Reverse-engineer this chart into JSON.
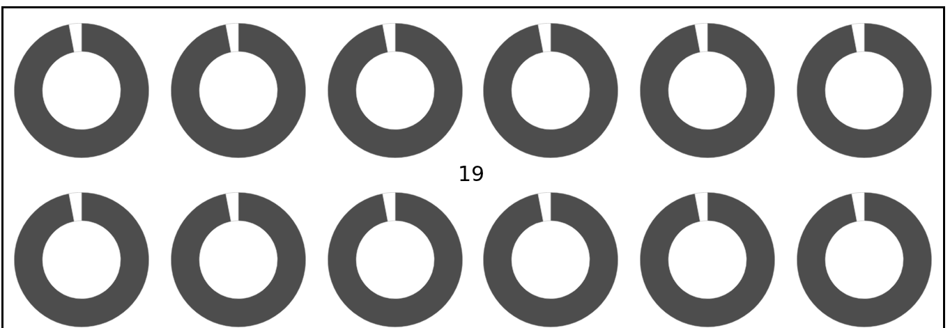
{
  "chart_data": [
    {
      "type": "donut",
      "categories": [
        null,
        null
      ],
      "values": [
        97,
        3
      ],
      "colors": [
        "#4d4d4d",
        "#ffffff"
      ]
    },
    {
      "type": "donut",
      "categories": [
        null,
        null
      ],
      "values": [
        97,
        3
      ],
      "colors": [
        "#4d4d4d",
        "#ffffff"
      ]
    },
    {
      "type": "donut",
      "categories": [
        null,
        null
      ],
      "values": [
        97,
        3
      ],
      "colors": [
        "#4d4d4d",
        "#ffffff"
      ]
    },
    {
      "type": "donut",
      "categories": [
        null,
        null
      ],
      "values": [
        97,
        3
      ],
      "colors": [
        "#4d4d4d",
        "#ffffff"
      ]
    },
    {
      "type": "donut",
      "categories": [
        null,
        null
      ],
      "values": [
        97,
        3
      ],
      "colors": [
        "#4d4d4d",
        "#ffffff"
      ]
    },
    {
      "type": "donut",
      "categories": [
        null,
        null
      ],
      "values": [
        97,
        3
      ],
      "colors": [
        "#4d4d4d",
        "#ffffff"
      ]
    },
    {
      "type": "other",
      "title": "19"
    },
    {
      "type": "donut",
      "categories": [
        null,
        null
      ],
      "values": [
        97,
        3
      ],
      "colors": [
        "#4d4d4d",
        "#ffffff"
      ]
    },
    {
      "type": "donut",
      "categories": [
        null,
        null
      ],
      "values": [
        97,
        3
      ],
      "colors": [
        "#4d4d4d",
        "#ffffff"
      ]
    },
    {
      "type": "donut",
      "categories": [
        null,
        null
      ],
      "values": [
        97,
        3
      ],
      "colors": [
        "#4d4d4d",
        "#ffffff"
      ]
    },
    {
      "type": "donut",
      "categories": [
        null,
        null
      ],
      "values": [
        97,
        3
      ],
      "colors": [
        "#4d4d4d",
        "#ffffff"
      ]
    },
    {
      "type": "donut",
      "categories": [
        null,
        null
      ],
      "values": [
        97,
        3
      ],
      "colors": [
        "#4d4d4d",
        "#ffffff"
      ]
    },
    {
      "type": "donut",
      "categories": [
        null,
        null
      ],
      "values": [
        97,
        3
      ],
      "colors": [
        "#4d4d4d",
        "#ffffff"
      ]
    }
  ]
}
